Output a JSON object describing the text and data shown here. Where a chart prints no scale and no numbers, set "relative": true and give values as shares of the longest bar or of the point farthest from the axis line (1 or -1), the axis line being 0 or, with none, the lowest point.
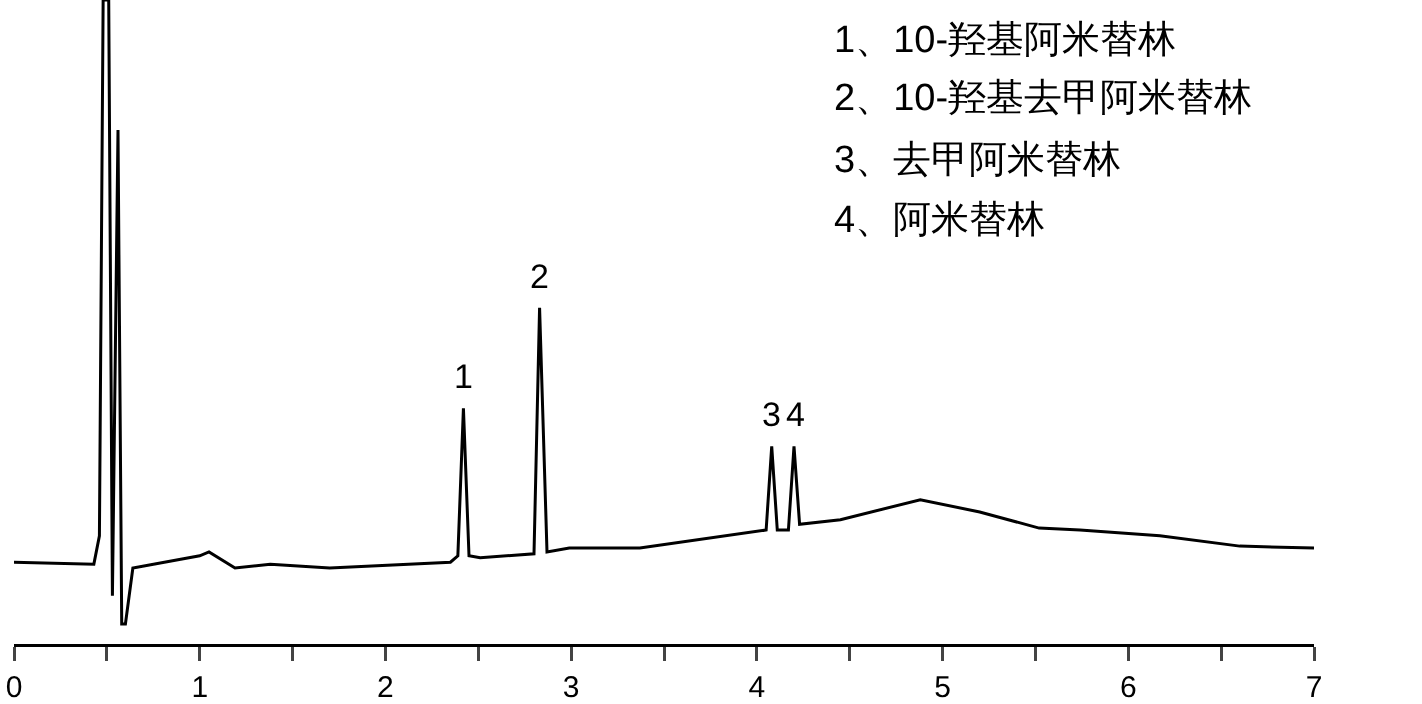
{
  "chart_data": {
    "type": "line",
    "relative": true,
    "line_style": "solid",
    "marker": "none",
    "xlim": [
      0,
      7
    ],
    "xticks": [
      0,
      {
        "value": 0.5,
        "label": null
      },
      1,
      {
        "value": 1.5,
        "label": null
      },
      2,
      {
        "value": 2.5,
        "label": null
      },
      3,
      {
        "value": 3.5,
        "label": null
      },
      4,
      {
        "value": 4.5,
        "label": null
      },
      5,
      {
        "value": 5.5,
        "label": null
      },
      6,
      {
        "value": 6.5,
        "label": null
      },
      7
    ],
    "x": [
      0,
      0.43,
      0.46,
      0.48,
      0.51,
      0.53,
      0.56,
      0.58,
      0.6,
      0.64,
      1.0,
      1.05,
      1.19,
      1.38,
      1.7,
      2.35,
      2.39,
      2.42,
      2.45,
      2.51,
      2.8,
      2.83,
      2.87,
      2.99,
      3.37,
      4.05,
      4.08,
      4.11,
      4.17,
      4.2,
      4.23,
      4.45,
      4.88,
      5.2,
      5.52,
      5.74,
      6.17,
      6.6,
      7.0
    ],
    "series": [
      {
        "color": "#000000",
        "values": [
          0.127,
          0.124,
          0.168,
          1.0,
          1.0,
          0.075,
          0.798,
          0.031,
          0.031,
          0.118,
          0.137,
          0.143,
          0.118,
          0.124,
          0.118,
          0.127,
          0.137,
          0.366,
          0.137,
          0.134,
          0.14,
          0.522,
          0.143,
          0.149,
          0.149,
          0.177,
          0.307,
          0.177,
          0.177,
          0.307,
          0.186,
          0.193,
          0.224,
          0.205,
          0.18,
          0.177,
          0.168,
          0.152,
          0.149
        ]
      }
    ],
    "annotations": [
      {
        "text": "1",
        "x": 2.42,
        "y": 0.366
      },
      {
        "text": "2",
        "x": 2.83,
        "y": 0.522
      },
      {
        "text": "3",
        "x": 4.08,
        "y": 0.307
      },
      {
        "text": "4",
        "x": 4.2,
        "y": 0.307
      },
      "1、10-羟基阿米替林",
      "2、10-羟基去甲阿米替林",
      "3、去甲阿米替林",
      "4、阿米替林"
    ]
  }
}
